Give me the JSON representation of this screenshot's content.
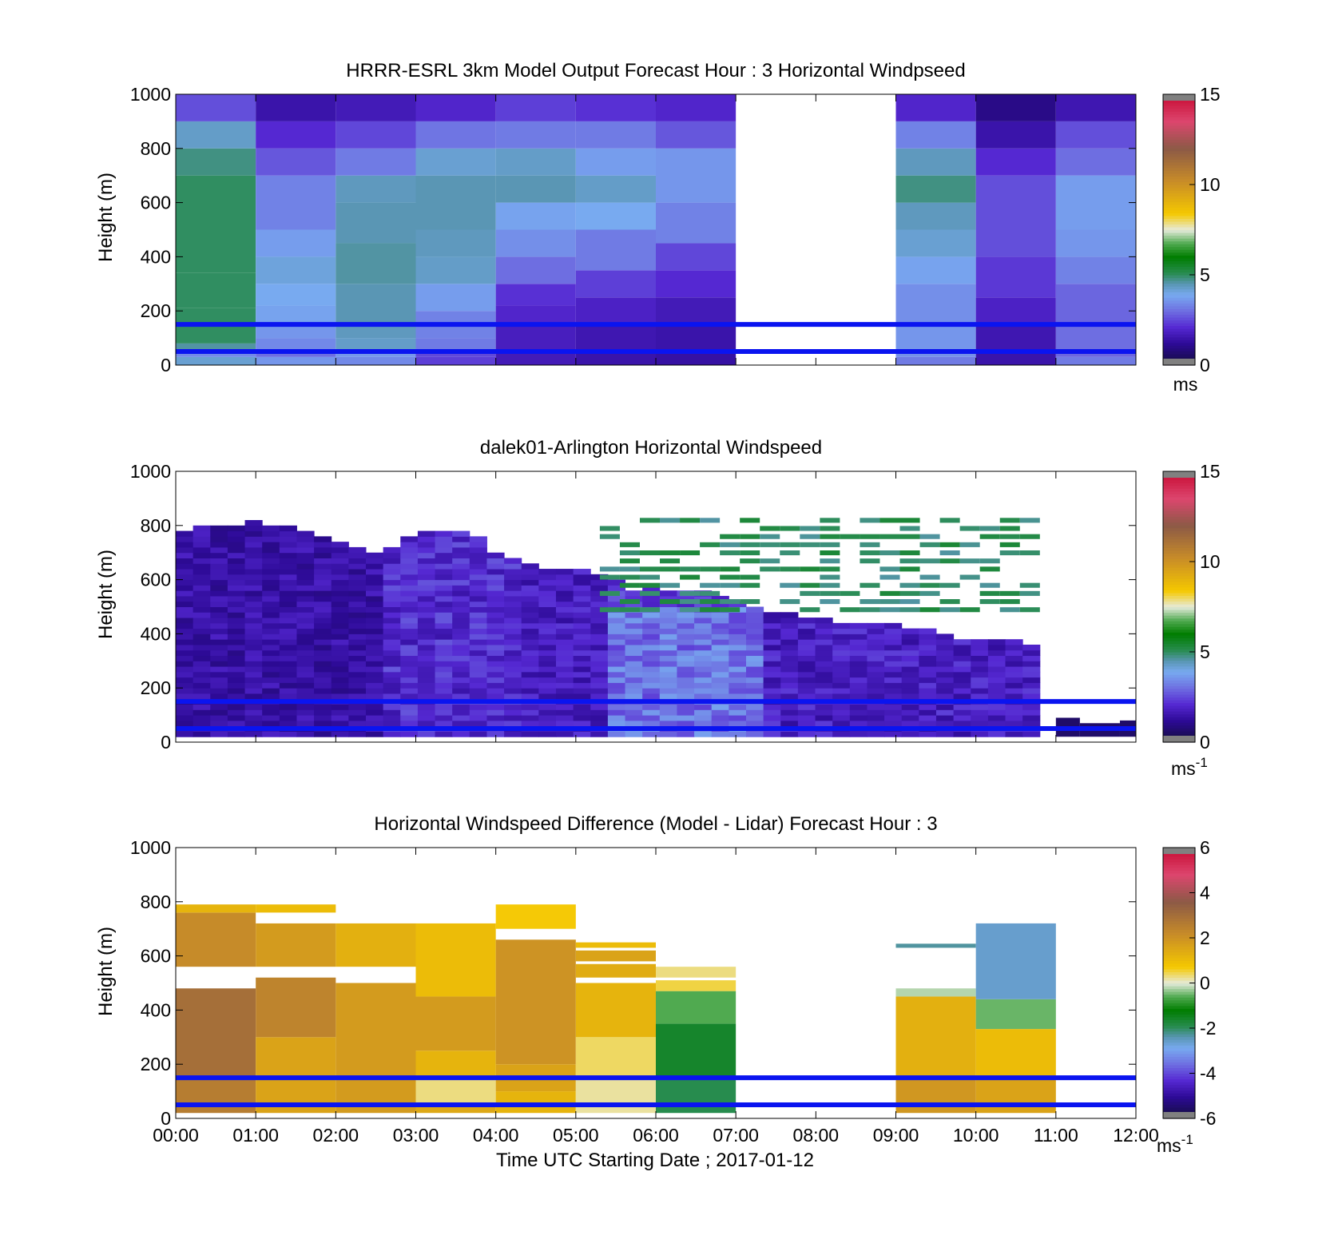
{
  "chart_data": [
    {
      "type": "heatmap",
      "title": "HRRR-ESRL 3km Model Output   Forecast Hour : 3 Horizontal Windpseed",
      "ylabel": "Height (m)",
      "ylim": [
        0,
        1000
      ],
      "yticks": [
        "0",
        "200",
        "400",
        "600",
        "800",
        "1000"
      ],
      "xlim": [
        0,
        12
      ],
      "colorbar": {
        "range": [
          0,
          15
        ],
        "ticks": [
          "0",
          "5",
          "10",
          "15"
        ],
        "unit": "ms",
        "unit_sup": "",
        "scale": "speed"
      },
      "reference_lines": [
        50,
        150
      ],
      "columns": [
        {
          "t0": 0,
          "t1": 1,
          "cells": [
            [
              0,
              30,
              4.2
            ],
            [
              30,
              50,
              3.4
            ],
            [
              50,
              80,
              4.6
            ],
            [
              80,
              150,
              5.0
            ],
            [
              150,
              210,
              5.0
            ],
            [
              210,
              340,
              5.0
            ],
            [
              340,
              500,
              5.0
            ],
            [
              500,
              700,
              5.0
            ],
            [
              700,
              800,
              4.8
            ],
            [
              800,
              900,
              4.3
            ],
            [
              900,
              1000,
              2.6
            ]
          ]
        },
        {
          "t0": 1,
          "t1": 2,
          "cells": [
            [
              0,
              30,
              3.6
            ],
            [
              30,
              50,
              3.0
            ],
            [
              50,
              100,
              3.4
            ],
            [
              100,
              150,
              3.6
            ],
            [
              150,
              220,
              3.8
            ],
            [
              220,
              300,
              3.9
            ],
            [
              300,
              400,
              4.1
            ],
            [
              400,
              500,
              3.7
            ],
            [
              500,
              700,
              3.3
            ],
            [
              700,
              800,
              2.7
            ],
            [
              800,
              900,
              2.1
            ],
            [
              900,
              1000,
              1.5
            ]
          ]
        },
        {
          "t0": 2,
          "t1": 3,
          "cells": [
            [
              0,
              30,
              3.4
            ],
            [
              30,
              50,
              3.6
            ],
            [
              50,
              100,
              4.3
            ],
            [
              100,
              150,
              4.4
            ],
            [
              150,
              300,
              4.5
            ],
            [
              300,
              450,
              4.6
            ],
            [
              450,
              600,
              4.5
            ],
            [
              600,
              700,
              4.4
            ],
            [
              700,
              800,
              3.2
            ],
            [
              800,
              900,
              2.5
            ],
            [
              900,
              1000,
              1.7
            ]
          ]
        },
        {
          "t0": 3,
          "t1": 4,
          "cells": [
            [
              0,
              30,
              2.4
            ],
            [
              30,
              50,
              2.5
            ],
            [
              50,
              100,
              3.2
            ],
            [
              100,
              150,
              3.3
            ],
            [
              150,
              200,
              3.3
            ],
            [
              200,
              300,
              3.7
            ],
            [
              300,
              400,
              4.3
            ],
            [
              400,
              500,
              4.4
            ],
            [
              500,
              700,
              4.5
            ],
            [
              700,
              800,
              4.2
            ],
            [
              800,
              900,
              3.1
            ],
            [
              900,
              1000,
              2.0
            ]
          ]
        },
        {
          "t0": 4,
          "t1": 5,
          "cells": [
            [
              0,
              50,
              1.7
            ],
            [
              50,
              150,
              1.8
            ],
            [
              150,
              220,
              2.0
            ],
            [
              220,
              300,
              2.2
            ],
            [
              300,
              400,
              3.0
            ],
            [
              400,
              500,
              3.5
            ],
            [
              500,
              600,
              3.8
            ],
            [
              600,
              700,
              4.5
            ],
            [
              700,
              800,
              4.3
            ],
            [
              800,
              900,
              3.2
            ],
            [
              900,
              1000,
              2.4
            ]
          ]
        },
        {
          "t0": 5,
          "t1": 6,
          "cells": [
            [
              0,
              50,
              1.5
            ],
            [
              50,
              150,
              1.6
            ],
            [
              150,
              250,
              1.9
            ],
            [
              250,
              350,
              2.4
            ],
            [
              350,
              500,
              3.2
            ],
            [
              500,
              600,
              3.9
            ],
            [
              600,
              700,
              4.3
            ],
            [
              700,
              800,
              3.7
            ],
            [
              800,
              900,
              3.2
            ],
            [
              900,
              1000,
              2.2
            ]
          ]
        },
        {
          "t0": 6,
          "t1": 7,
          "cells": [
            [
              0,
              50,
              1.4
            ],
            [
              50,
              150,
              1.5
            ],
            [
              150,
              250,
              1.7
            ],
            [
              250,
              350,
              2.1
            ],
            [
              350,
              450,
              2.5
            ],
            [
              450,
              600,
              3.3
            ],
            [
              600,
              800,
              3.6
            ],
            [
              800,
              900,
              2.7
            ],
            [
              900,
              1000,
              2.0
            ]
          ]
        },
        {
          "t0": 9,
          "t1": 10,
          "cells": [
            [
              0,
              30,
              3.2
            ],
            [
              30,
              50,
              3.5
            ],
            [
              50,
              150,
              3.6
            ],
            [
              150,
              300,
              3.5
            ],
            [
              300,
              400,
              3.8
            ],
            [
              400,
              500,
              4.2
            ],
            [
              500,
              600,
              4.4
            ],
            [
              600,
              700,
              4.8
            ],
            [
              700,
              800,
              4.4
            ],
            [
              800,
              900,
              3.3
            ],
            [
              900,
              1000,
              2.0
            ]
          ]
        },
        {
          "t0": 10,
          "t1": 11,
          "cells": [
            [
              0,
              50,
              1.5
            ],
            [
              50,
              150,
              1.6
            ],
            [
              150,
              250,
              1.9
            ],
            [
              250,
              400,
              2.3
            ],
            [
              400,
              500,
              2.6
            ],
            [
              500,
              700,
              2.6
            ],
            [
              700,
              800,
              2.1
            ],
            [
              800,
              900,
              1.5
            ],
            [
              900,
              1000,
              1.0
            ]
          ]
        },
        {
          "t0": 11,
          "t1": 12,
          "cells": [
            [
              0,
              30,
              3.2
            ],
            [
              30,
              50,
              2.9
            ],
            [
              50,
              150,
              3.0
            ],
            [
              150,
              300,
              2.9
            ],
            [
              300,
              400,
              3.3
            ],
            [
              400,
              500,
              3.6
            ],
            [
              500,
              700,
              3.7
            ],
            [
              700,
              800,
              3.0
            ],
            [
              800,
              900,
              2.6
            ],
            [
              900,
              1000,
              1.6
            ]
          ]
        }
      ]
    },
    {
      "type": "heatmap",
      "title": "dalek01-Arlington  Horizontal Windspeed",
      "ylabel": "Height (m)",
      "ylim": [
        0,
        1000
      ],
      "yticks": [
        "0",
        "200",
        "400",
        "600",
        "800",
        "1000"
      ],
      "xlim": [
        0,
        12
      ],
      "colorbar": {
        "range": [
          0,
          15
        ],
        "ticks": [
          "0",
          "5",
          "10",
          "15"
        ],
        "unit": "ms",
        "unit_sup": "-1",
        "scale": "speed"
      },
      "reference_lines": [
        50,
        150
      ],
      "profile_columns": 50,
      "profile_top_m": [
        780,
        790,
        800,
        790,
        810,
        800,
        790,
        780,
        760,
        740,
        720,
        700,
        720,
        750,
        770,
        780,
        780,
        760,
        700,
        680,
        660,
        640,
        640,
        640,
        620,
        600,
        560,
        580,
        560,
        560,
        550,
        540,
        520,
        500,
        480,
        470,
        460,
        450,
        440,
        440,
        440,
        430,
        420,
        420,
        400,
        380,
        380,
        380,
        370,
        360
      ],
      "profile_end_hour": 10.8,
      "upper_green_layer": {
        "t0": 5.3,
        "t1": 10.8,
        "y0": 480,
        "y1": 820,
        "value": 5.0
      }
    },
    {
      "type": "heatmap",
      "title": "Horizontal Windspeed Difference (Model - Lidar) Forecast Hour : 3",
      "xlabel": "Time UTC  Starting Date ; 2017-01-12",
      "ylabel": "Height (m)",
      "ylim": [
        0,
        1000
      ],
      "yticks": [
        "0",
        "200",
        "400",
        "600",
        "800",
        "1000"
      ],
      "xlim": [
        0,
        12
      ],
      "xticks": [
        "00:00",
        "01:00",
        "02:00",
        "03:00",
        "04:00",
        "05:00",
        "06:00",
        "07:00",
        "08:00",
        "09:00",
        "10:00",
        "11:00",
        "12:00"
      ],
      "colorbar": {
        "range": [
          -6,
          6
        ],
        "ticks": [
          "-6",
          "-4",
          "-2",
          "0",
          "2",
          "4",
          "6"
        ],
        "unit": "ms",
        "unit_sup": "-1",
        "scale": "difference"
      },
      "reference_lines": [
        50,
        150
      ],
      "columns": [
        {
          "t0": 0,
          "t1": 1,
          "cells": [
            [
              20,
              150,
              2.6
            ],
            [
              150,
              480,
              3.0
            ],
            [
              560,
              760,
              2.2
            ],
            [
              760,
              790,
              1.2
            ]
          ]
        },
        {
          "t0": 1,
          "t1": 2,
          "cells": [
            [
              20,
              300,
              1.6
            ],
            [
              300,
              520,
              2.4
            ],
            [
              560,
              720,
              1.8
            ],
            [
              760,
              790,
              1.0
            ]
          ]
        },
        {
          "t0": 2,
          "t1": 3,
          "cells": [
            [
              20,
              500,
              1.8
            ],
            [
              560,
              720,
              1.3
            ]
          ]
        },
        {
          "t0": 3,
          "t1": 4,
          "cells": [
            [
              20,
              50,
              1.5
            ],
            [
              50,
              150,
              0.3
            ],
            [
              150,
              250,
              1.2
            ],
            [
              250,
              450,
              1.8
            ],
            [
              450,
              720,
              1.0
            ]
          ]
        },
        {
          "t0": 4,
          "t1": 5,
          "cells": [
            [
              20,
              100,
              1.2
            ],
            [
              100,
              200,
              1.6
            ],
            [
              200,
              660,
              2.0
            ],
            [
              700,
              790,
              0.7
            ]
          ]
        },
        {
          "t0": 5,
          "t1": 6,
          "cells": [
            [
              20,
              150,
              0.2
            ],
            [
              150,
              300,
              0.4
            ],
            [
              300,
              500,
              1.2
            ],
            [
              520,
              570,
              1.4
            ],
            [
              580,
              620,
              1.6
            ],
            [
              630,
              650,
              1.0
            ]
          ]
        },
        {
          "t0": 6,
          "t1": 7,
          "cells": [
            [
              20,
              150,
              -1.9
            ],
            [
              150,
              350,
              -1.6
            ],
            [
              350,
              470,
              -0.6
            ],
            [
              470,
              510,
              0.5
            ],
            [
              520,
              560,
              0.3
            ]
          ]
        },
        {
          "t0": 9,
          "t1": 10,
          "cells": [
            [
              20,
              150,
              1.9
            ],
            [
              150,
              450,
              1.3
            ],
            [
              450,
              480,
              -0.2
            ],
            [
              630,
              645,
              -2.3
            ]
          ]
        },
        {
          "t0": 10,
          "t1": 11,
          "cells": [
            [
              20,
              150,
              1.6
            ],
            [
              150,
              330,
              1.0
            ],
            [
              330,
              440,
              -0.5
            ],
            [
              440,
              720,
              -2.6
            ]
          ]
        }
      ]
    }
  ]
}
